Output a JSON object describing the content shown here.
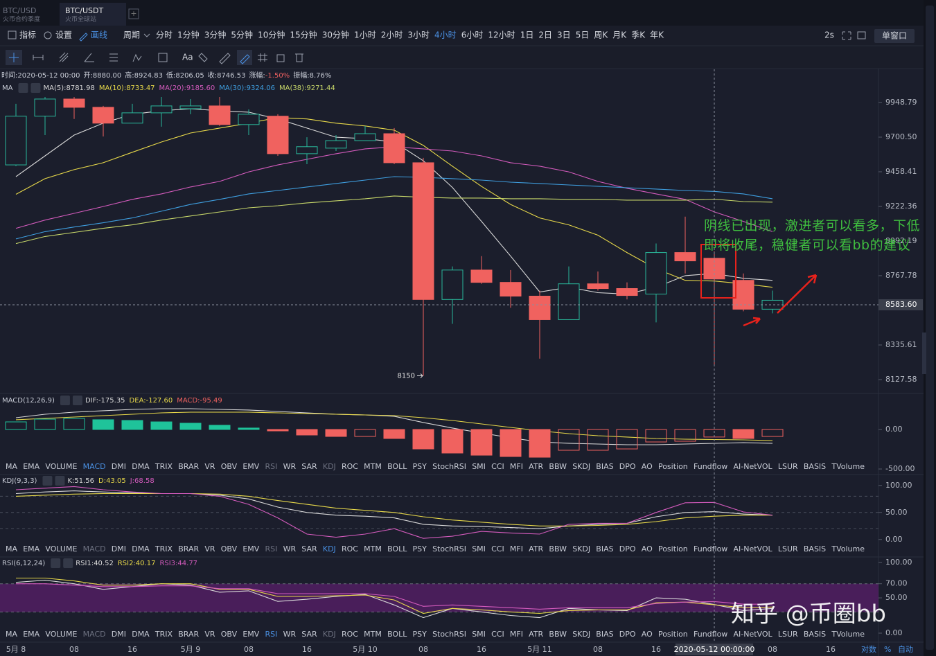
{
  "tabs": [
    {
      "title": "BTC/USD",
      "subtitle": "火币合约季度"
    },
    {
      "title": "BTC/USDT",
      "subtitle": "火币全球站"
    }
  ],
  "active_tab": 1,
  "toolbar": {
    "tools": [
      "指标",
      "设置",
      "画线"
    ],
    "active_tool": 2,
    "period_label": "周期",
    "periods": [
      "分时",
      "1分钟",
      "3分钟",
      "5分钟",
      "10分钟",
      "15分钟",
      "30分钟",
      "1小时",
      "2小时",
      "3小时",
      "4小时",
      "6小时",
      "12小时",
      "1日",
      "2日",
      "3日",
      "5日",
      "周K",
      "月K",
      "季K",
      "年K"
    ],
    "active_period": 10,
    "refresh": "2s",
    "window": "单窗口",
    "text_tool": "Aa"
  },
  "info": [
    {
      "label": "时间:",
      "value": "2020-05-12 00:00"
    },
    {
      "label": "开:",
      "value": "8880.00"
    },
    {
      "label": "高:",
      "value": "8924.83"
    },
    {
      "label": "低:",
      "value": "8206.05"
    },
    {
      "label": "收:",
      "value": "8746.53"
    },
    {
      "label": "涨幅:",
      "value": "-1.50%",
      "color": "#f06161"
    },
    {
      "label": "振幅:",
      "value": "8.76%"
    }
  ],
  "indicator_tabs": [
    "MA",
    "EMA",
    "VOLUME",
    "MACD",
    "DMI",
    "DMA",
    "TRIX",
    "BRAR",
    "VR",
    "OBV",
    "EMV",
    "RSI",
    "WR",
    "SAR",
    "KDJ",
    "ROC",
    "MTM",
    "BOLL",
    "PSY",
    "StochRSI",
    "SMI",
    "CCI",
    "MFI",
    "ATR",
    "BBW",
    "SKDJ",
    "BIAS",
    "DPO",
    "AO",
    "Position",
    "Fundflow",
    "AI-NetVOL",
    "LSUR",
    "BASIS",
    "TVolume"
  ],
  "annotation": "阴线已出现，激进者可以看多，下低即将收尾，稳健者可以看bb的建议",
  "watermark": "知乎 @币圈bb",
  "axis_options": [
    "对数",
    "%",
    "自动"
  ],
  "chart_data": [
    {
      "type": "candlestick",
      "legend_title": "MA",
      "log": true,
      "up_color": "#2ab89b",
      "down_color": "#f0625f",
      "crosshair": 24,
      "categories": [
        "5月 8",
        null,
        "08",
        null,
        "16",
        null,
        "5月 9",
        null,
        "08",
        null,
        "16",
        null,
        "5月 10",
        null,
        "08",
        null,
        "16",
        null,
        "5月 11",
        null,
        "08",
        null,
        "16",
        null,
        "2020-05-12 00:00:00",
        null,
        "08",
        null,
        "16"
      ],
      "candles": {
        "open": [
          9506,
          9850,
          9974,
          9914,
          9800,
          9874,
          9904,
          9924,
          9790,
          9850,
          9584,
          9623,
          9676,
          9725,
          9521,
          8617,
          8804,
          8725,
          8638,
          8491,
          8716,
          8686,
          8651,
          8917,
          8880,
          8738,
          8556,
          null,
          null
        ],
        "high": [
          9939,
          9989,
          9989,
          9924,
          9939,
          9989,
          9974,
          9989,
          9899,
          9864,
          9700,
          9715,
          9780,
          9765,
          9555,
          8827,
          8894,
          8804,
          8673,
          8827,
          8795,
          8725,
          8976,
          9154,
          8924.83,
          8782,
          8673,
          null,
          null
        ],
        "low": [
          9497,
          9715,
          9830,
          9705,
          9800,
          9775,
          9864,
          9780,
          9715,
          9569,
          9511,
          9603,
          9676,
          9511,
          8150,
          8465,
          8716,
          8565,
          8253,
          8491,
          8673,
          8617,
          8474,
          8782,
          8206.05,
          8543,
          8530,
          null,
          null
        ],
        "close": [
          9850,
          9974,
          9914,
          9800,
          9874,
          9924,
          9924,
          9790,
          9864,
          9584,
          9633,
          9676,
          9725,
          9521,
          8617,
          8804,
          8725,
          8638,
          8491,
          8716,
          8686,
          8642,
          8917,
          8863,
          8746.53,
          8556,
          8612,
          null,
          null
        ]
      },
      "low_marker": 14,
      "series": [
        {
          "name": "MA(5):8781.98",
          "color": "#d9d9d9",
          "values": [
            9425,
            9569,
            9715,
            9800,
            9864,
            9889,
            9904,
            9889,
            9879,
            9830,
            9765,
            9700,
            9690,
            9666,
            9535,
            9351,
            9122,
            8894,
            8664,
            8694,
            8660,
            8651,
            8694,
            8768,
            8781.98,
            8751,
            8738,
            null,
            null
          ]
        },
        {
          "name": "MA(10):8733.47",
          "color": "#e8d94a",
          "values": [
            9304,
            9411,
            9473,
            9521,
            9594,
            9666,
            9730,
            9765,
            9800,
            9840,
            9830,
            9800,
            9780,
            9750,
            9642,
            9497,
            9358,
            9236,
            9145,
            9099,
            9031,
            8917,
            8813,
            8738,
            8733.47,
            8716,
            8694,
            null,
            null
          ]
        },
        {
          "name": "MA(20):9185.60",
          "color": "#d45bbd",
          "values": [
            9076,
            9131,
            9176,
            9222,
            9270,
            9307,
            9354,
            9392,
            9458,
            9506,
            9545,
            9584,
            9618,
            9633,
            9618,
            9603,
            9569,
            9521,
            9497,
            9458,
            9392,
            9345,
            9307,
            9270,
            9185.6,
            9122,
            9054,
            null,
            null
          ]
        },
        {
          "name": "MA(30):9324.06",
          "color": "#3f9fe0",
          "values": [
            9006,
            9054,
            9085,
            9113,
            9145,
            9190,
            9236,
            9270,
            9307,
            9330,
            9354,
            9378,
            9401,
            9425,
            9420,
            9411,
            9401,
            9387,
            9378,
            9368,
            9359,
            9349,
            9340,
            9330,
            9324.06,
            9307,
            9274,
            null,
            null
          ]
        },
        {
          "name": "MA(38):9271.44",
          "color": "#c8d86a",
          "values": [
            8976,
            9022,
            9049,
            9076,
            9099,
            9131,
            9158,
            9185,
            9213,
            9227,
            9246,
            9260,
            9274,
            9293,
            9284,
            9279,
            9279,
            9274,
            9274,
            9270,
            9270,
            9265,
            9265,
            9265,
            9271.44,
            9255,
            9251,
            null,
            null
          ]
        }
      ],
      "ylim": [
        8058,
        10193
      ],
      "yticks": [
        9948.79,
        {
          "value": 9700.5,
          "label": "9700.50"
        },
        9458.41,
        9222.36,
        8992.19,
        8767.78,
        8335.61,
        8127.58
      ],
      "current_price": {
        "value": 8583.6,
        "label": "8583.60"
      }
    },
    {
      "type": "macd",
      "title": "MACD(12,26,9)",
      "active_tab": 3,
      "up_color": "#1fc39a",
      "down_color": "#f0625f",
      "series": [
        {
          "name": "DIF:-175.35",
          "color": "#d9d9d9",
          "values": [
            149,
            193,
            219,
            237,
            254,
            263,
            263,
            254,
            246,
            228,
            210,
            193,
            184,
            167,
            88,
            18,
            -44,
            -105,
            -158,
            -175,
            -184,
            -193,
            -193,
            -184,
            -175.35,
            -167,
            -175,
            null,
            null
          ]
        },
        {
          "name": "DEA:-127.60",
          "color": "#e8d94a",
          "values": [
            123,
            140,
            158,
            175,
            193,
            210,
            219,
            219,
            219,
            210,
            202,
            193,
            184,
            175,
            149,
            114,
            70,
            26,
            -18,
            -53,
            -79,
            -96,
            -114,
            -123,
            -127.6,
            -132,
            -140,
            null,
            null
          ]
        },
        {
          "name": "MACD:-95.49",
          "color": "#f0625f",
          "type": "bar",
          "values": [
            96,
            131,
            140,
            123,
            114,
            96,
            79,
            53,
            18,
            -18,
            -70,
            -88,
            -88,
            -114,
            -246,
            -298,
            -325,
            -342,
            -351,
            -263,
            -263,
            -246,
            -158,
            -149,
            -95.49,
            -114,
            -88,
            null,
            null
          ]
        }
      ],
      "ylim": [
        -526,
        438
      ],
      "yticks": [
        {
          "value": 0,
          "label": "0.00"
        },
        {
          "value": -500,
          "label": "-500.00"
        }
      ]
    },
    {
      "type": "line",
      "title": "KDJ(9,3,3)",
      "active_tab": 14,
      "levels": [
        80,
        50,
        20
      ],
      "series": [
        {
          "name": "K:51.56",
          "color": "#d9d9d9",
          "values": [
            85,
            88,
            90,
            88,
            86,
            85,
            85,
            82,
            75,
            60,
            50,
            45,
            43,
            40,
            28,
            25,
            24,
            22,
            20,
            25,
            28,
            30,
            42,
            50,
            51.56,
            47,
            45,
            null,
            null
          ]
        },
        {
          "name": "D:43.05",
          "color": "#e8d94a",
          "values": [
            80,
            82,
            84,
            85,
            85,
            85,
            85,
            84,
            80,
            72,
            65,
            58,
            54,
            50,
            42,
            36,
            32,
            28,
            25,
            25,
            26,
            28,
            33,
            40,
            43.05,
            45,
            45,
            null,
            null
          ]
        },
        {
          "name": "J:68.58",
          "color": "#d45bbd",
          "values": [
            92,
            95,
            98,
            92,
            88,
            85,
            85,
            80,
            65,
            40,
            10,
            4,
            10,
            20,
            2,
            6,
            15,
            12,
            10,
            28,
            30,
            30,
            50,
            68,
            68.58,
            51,
            45,
            null,
            null
          ]
        }
      ],
      "ylim": [
        -8,
        119
      ],
      "yticks": [
        {
          "value": 100,
          "label": "100.00"
        },
        {
          "value": 50,
          "label": "50.00"
        },
        {
          "value": 0,
          "label": "0.00"
        }
      ]
    },
    {
      "type": "line",
      "title": "RSI(6,12,24)",
      "active_tab": 11,
      "band": [
        30,
        70
      ],
      "band_color": "#5a1f6a",
      "series": [
        {
          "name": "RSI1:40.52",
          "color": "#d9d9d9",
          "values": [
            72,
            75,
            70,
            62,
            66,
            70,
            68,
            58,
            60,
            45,
            48,
            52,
            55,
            40,
            22,
            35,
            30,
            25,
            22,
            35,
            33,
            32,
            50,
            48,
            40.52,
            32,
            35,
            null,
            null
          ]
        },
        {
          "name": "RSI2:40.17",
          "color": "#e8d94a",
          "values": [
            78,
            78,
            74,
            68,
            68,
            70,
            70,
            62,
            62,
            52,
            52,
            53,
            54,
            47,
            28,
            35,
            33,
            30,
            28,
            32,
            33,
            33,
            43,
            44,
            40.17,
            36,
            37,
            null,
            null
          ]
        },
        {
          "name": "RSI3:44.77",
          "color": "#d45bbd",
          "values": [
            70,
            70,
            68,
            66,
            66,
            67,
            67,
            63,
            63,
            56,
            56,
            56,
            56,
            52,
            38,
            40,
            38,
            36,
            34,
            36,
            36,
            36,
            42,
            44,
            44.77,
            41,
            41,
            null,
            null
          ]
        }
      ],
      "ylim": [
        0,
        107
      ],
      "yticks": [
        {
          "value": 100,
          "label": "100.00"
        },
        {
          "value": 70,
          "label": "70.00"
        },
        {
          "value": 50,
          "label": "50.00"
        },
        {
          "value": 0,
          "label": "0.00"
        }
      ]
    }
  ]
}
